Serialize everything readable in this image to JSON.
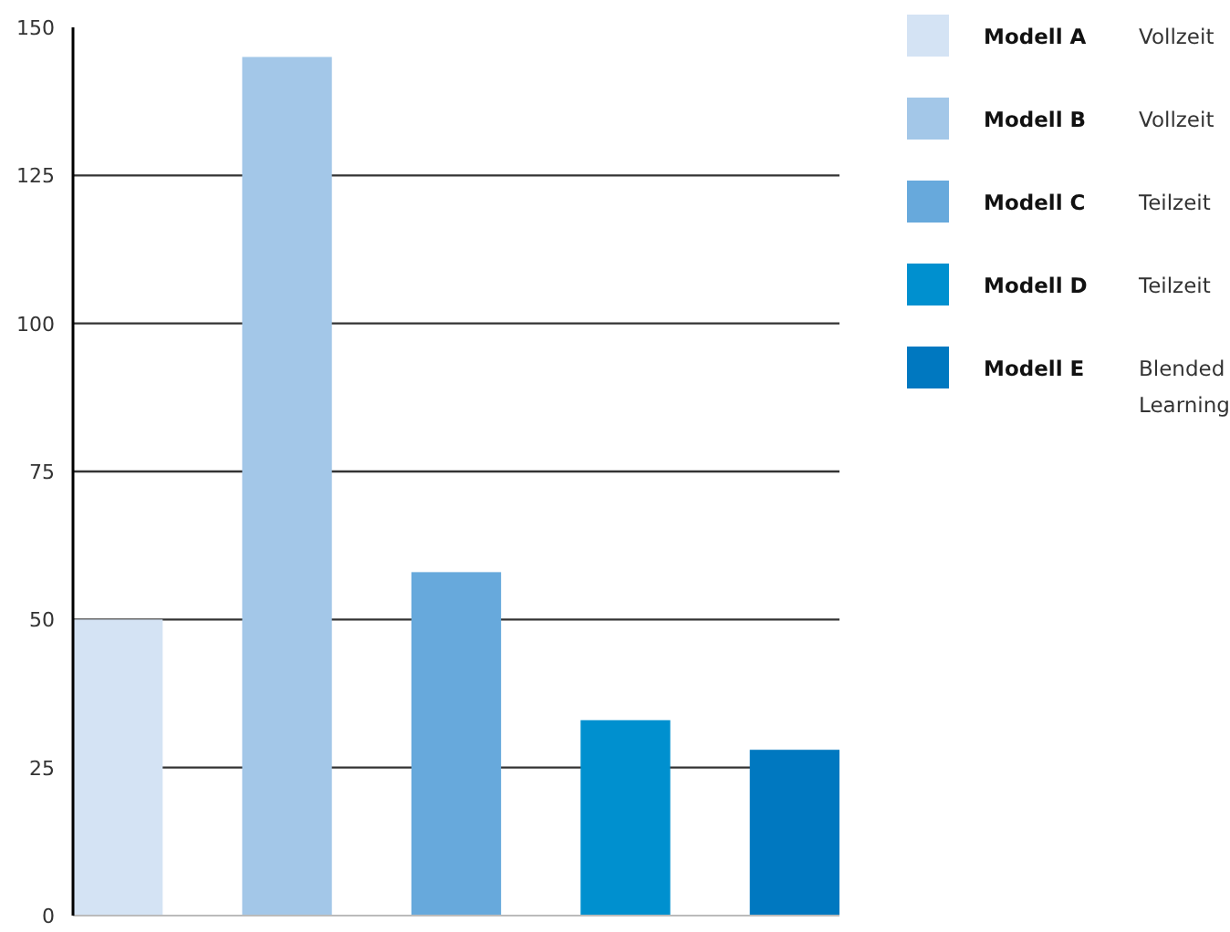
{
  "chart_data": {
    "type": "bar",
    "categories": [
      null,
      null,
      null,
      null,
      null
    ],
    "series": [
      {
        "name": "Modell A",
        "color": "#d4e3f4",
        "values": [
          50,
          null,
          null,
          null,
          null
        ]
      },
      {
        "name": "Modell B",
        "color": "#a3c7e8",
        "values": [
          null,
          145,
          null,
          null,
          null
        ]
      },
      {
        "name": "Modell C",
        "color": "#67a9dc",
        "values": [
          null,
          null,
          58,
          null,
          null
        ]
      },
      {
        "name": "Modell D",
        "color": "#0090cf",
        "values": [
          null,
          null,
          null,
          33,
          null
        ]
      },
      {
        "name": "Modell E",
        "color": "#0078c0",
        "values": [
          null,
          null,
          null,
          null,
          28
        ]
      }
    ],
    "annotations": [
      "Vollzeit",
      "Vollzeit",
      "Teilzeit",
      "Teilzeit",
      "Blended Learning"
    ],
    "ylim": [
      0,
      150
    ],
    "yticks": [
      0,
      25,
      50,
      75,
      100,
      125,
      150
    ],
    "grid": "y",
    "legend": "right"
  }
}
